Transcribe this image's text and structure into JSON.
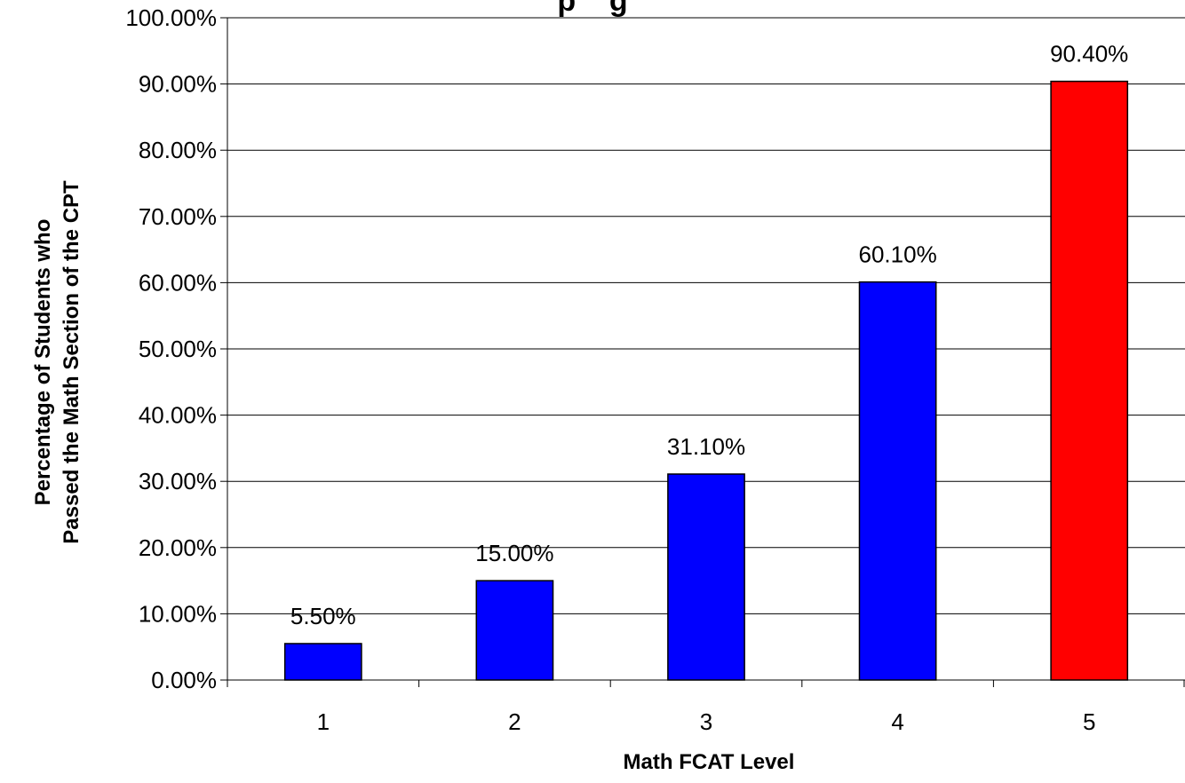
{
  "chart_data": {
    "type": "bar",
    "title_fragment": "p    g",
    "categories": [
      "1",
      "2",
      "3",
      "4",
      "5"
    ],
    "values": [
      5.5,
      15.0,
      31.1,
      60.1,
      90.4
    ],
    "data_labels": [
      "5.50%",
      "15.00%",
      "31.10%",
      "60.10%",
      "90.40%"
    ],
    "bar_colors": [
      "#0000FF",
      "#0000FF",
      "#0000FF",
      "#0000FF",
      "#FF0000"
    ],
    "xlabel": "Math FCAT Level",
    "ylabel_lines": [
      "Percentage of Students who",
      "Passed the Math Section of the CPT"
    ],
    "ylim": [
      0,
      100
    ],
    "yticks": [
      0,
      10,
      20,
      30,
      40,
      50,
      60,
      70,
      80,
      90,
      100
    ],
    "ytick_labels": [
      "0.00%",
      "10.00%",
      "20.00%",
      "30.00%",
      "40.00%",
      "50.00%",
      "60.00%",
      "70.00%",
      "80.00%",
      "90.00%",
      "100.00%"
    ],
    "grid": true,
    "legend": "none"
  }
}
